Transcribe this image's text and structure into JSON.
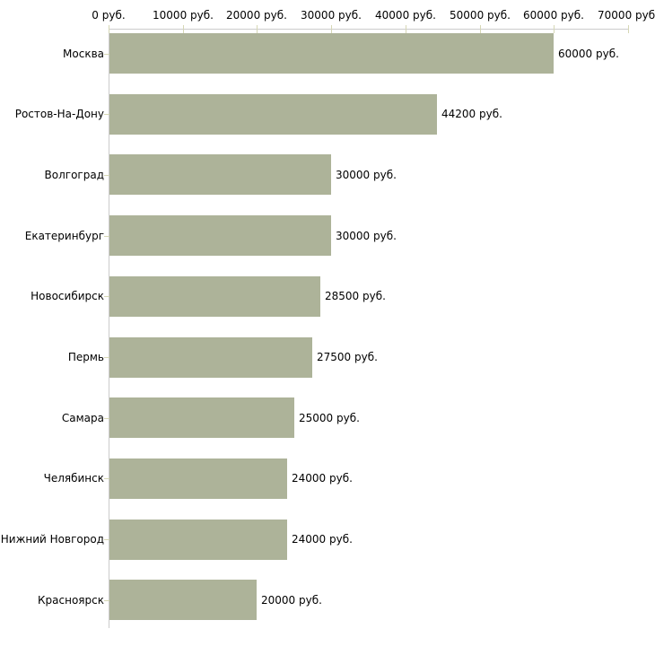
{
  "chart_data": {
    "type": "bar",
    "orientation": "horizontal",
    "categories": [
      "Москва",
      "Ростов-На-Дону",
      "Волгоград",
      "Екатеринбург",
      "Новосибирск",
      "Пермь",
      "Самара",
      "Челябинск",
      "Нижний Новгород",
      "Красноярск"
    ],
    "values": [
      60000,
      44200,
      30000,
      30000,
      28500,
      27500,
      25000,
      24000,
      24000,
      20000
    ],
    "value_labels": [
      "60000 руб.",
      "44200 руб.",
      "30000 руб.",
      "30000 руб.",
      "28500 руб.",
      "27500 руб.",
      "25000 руб.",
      "24000 руб.",
      "24000 руб.",
      "20000 руб."
    ],
    "x_axis": {
      "position": "top",
      "tick_values": [
        0,
        10000,
        20000,
        30000,
        40000,
        50000,
        60000,
        70000
      ],
      "tick_labels": [
        "0 руб.",
        "10000 руб.",
        "20000 руб.",
        "30000 руб.",
        "40000 руб.",
        "50000 руб.",
        "60000 руб.",
        "70000 руб."
      ]
    },
    "xlim": [
      0,
      70000
    ],
    "grid": false,
    "legend": false,
    "colors": {
      "bar": "#adb399",
      "axis_line": "#cccccc",
      "tick_mark": "#d6d7b5",
      "text": "#000000",
      "background": "#ffffff"
    }
  }
}
